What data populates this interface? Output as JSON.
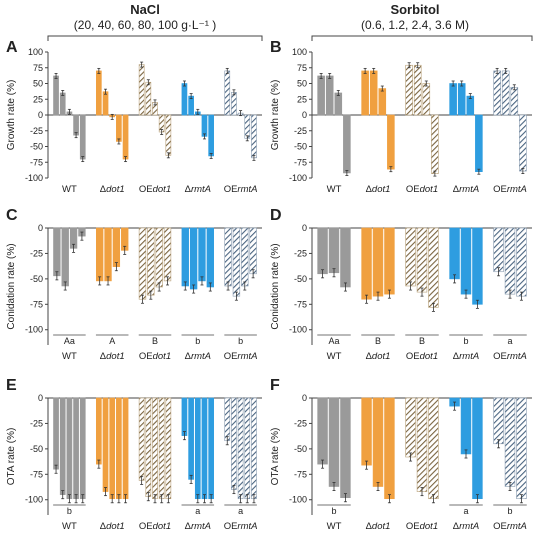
{
  "headers": [
    {
      "title": "NaCl",
      "subtitle": "(20, 40, 60, 80, 100 g·L⁻¹ )"
    },
    {
      "title": "Sorbitol",
      "subtitle": "(0.6, 1.2, 2.4, 3.6 M)"
    }
  ],
  "strains": [
    {
      "prefix": "",
      "gene": "WT",
      "italic": false
    },
    {
      "prefix": "Δ",
      "gene": "dot1",
      "italic": true
    },
    {
      "prefix": "OE",
      "gene": "dot1",
      "italic": true
    },
    {
      "prefix": "Δ",
      "gene": "rmtA",
      "italic": true
    },
    {
      "prefix": "OE",
      "gene": "rmtA",
      "italic": true
    }
  ],
  "colors": {
    "WT": "#9a9a9a",
    "dot1_del": "#f0a040",
    "dot1_oe_hatch": "#b8a078",
    "rmtA_del": "#2e9de0",
    "rmtA_oe_hatch": "#8a9cb0"
  },
  "chart_data": [
    {
      "type": "bar",
      "panel": "A",
      "ylabel": "Growth rate (%)",
      "ylim": [
        -100,
        100
      ],
      "yticks": [
        100,
        75,
        50,
        25,
        0,
        -25,
        -50,
        -75,
        -100
      ],
      "categories": [
        "WT",
        "Δdot1",
        "OEdot1",
        "ΔrmtA",
        "OErmtA"
      ],
      "values": [
        [
          62,
          35,
          5,
          -32,
          -70
        ],
        [
          70,
          37,
          -3,
          -42,
          -70
        ],
        [
          80,
          52,
          20,
          -27,
          -64
        ],
        [
          50,
          30,
          5,
          -34,
          -65
        ],
        [
          70,
          36,
          3,
          -37,
          -68
        ]
      ],
      "annotations": []
    },
    {
      "type": "bar",
      "panel": "B",
      "ylabel": "Growth rate (%)",
      "ylim": [
        -100,
        100
      ],
      "yticks": [
        100,
        75,
        50,
        25,
        0,
        -25,
        -50,
        -75,
        -100
      ],
      "categories": [
        "WT",
        "Δdot1",
        "OEdot1",
        "ΔrmtA",
        "OErmtA"
      ],
      "values": [
        [
          62,
          62,
          35,
          -92
        ],
        [
          70,
          70,
          42,
          -86
        ],
        [
          79,
          79,
          50,
          -93
        ],
        [
          50,
          50,
          30,
          -90
        ],
        [
          70,
          70,
          44,
          -89
        ]
      ],
      "annotations": []
    },
    {
      "type": "bar",
      "panel": "C",
      "ylabel": "Conidation rate (%)",
      "ylim": [
        -115,
        0
      ],
      "yticks": [
        0,
        -25,
        -50,
        -75,
        -100
      ],
      "categories": [
        "WT",
        "Δdot1",
        "OEdot1",
        "ΔrmtA",
        "OErmtA"
      ],
      "values": [
        [
          -47,
          -57,
          -20,
          -8
        ],
        [
          -52,
          -52,
          -38,
          -22
        ],
        [
          -70,
          -66,
          -58,
          -52
        ],
        [
          -57,
          -60,
          -52,
          -58
        ],
        [
          -57,
          -67,
          -57,
          -45
        ]
      ],
      "annotations": [
        "Aa",
        "A",
        "B",
        "b",
        "b"
      ]
    },
    {
      "type": "bar",
      "panel": "D",
      "ylabel": "Conidation rate (%)",
      "ylim": [
        -115,
        0
      ],
      "yticks": [
        0,
        -25,
        -50,
        -75,
        -100
      ],
      "categories": [
        "WT",
        "Δdot1",
        "OEdot1",
        "ΔrmtA",
        "OErmtA"
      ],
      "values": [
        [
          -45,
          -44,
          -58
        ],
        [
          -70,
          -67,
          -65
        ],
        [
          -57,
          -63,
          -78
        ],
        [
          -50,
          -65,
          -75
        ],
        [
          -43,
          -65,
          -67
        ]
      ],
      "annotations": [
        "Aa",
        "B",
        "B",
        "b",
        "a"
      ]
    },
    {
      "type": "bar",
      "panel": "E",
      "ylabel": "OTA rate (%)",
      "ylim": [
        -115,
        0
      ],
      "yticks": [
        0,
        -25,
        -50,
        -75,
        -100
      ],
      "categories": [
        "WT",
        "Δdot1",
        "OEdot1",
        "ΔrmtA",
        "OErmtA"
      ],
      "values": [
        [
          -70,
          -95,
          -99,
          -99,
          -99
        ],
        [
          -65,
          -92,
          -99,
          -99,
          -99
        ],
        [
          -81,
          -97,
          -99,
          -99,
          -99
        ],
        [
          -37,
          -80,
          -99,
          -99,
          -99
        ],
        [
          -42,
          -90,
          -99,
          -99,
          -99
        ]
      ],
      "annotations": [
        "b",
        "",
        "",
        "a",
        "a"
      ]
    },
    {
      "type": "bar",
      "panel": "F",
      "ylabel": "OTA rate (%)",
      "ylim": [
        -115,
        0
      ],
      "yticks": [
        0,
        -25,
        -50,
        -75,
        -100
      ],
      "categories": [
        "WT",
        "Δdot1",
        "OEdot1",
        "ΔrmtA",
        "OErmtA"
      ],
      "values": [
        [
          -65,
          -87,
          -98
        ],
        [
          -66,
          -87,
          -99
        ],
        [
          -58,
          -92,
          -99
        ],
        [
          -8,
          -55,
          -99
        ],
        [
          -45,
          -87,
          -99
        ]
      ],
      "annotations": [
        "b",
        "",
        "",
        "a",
        "b"
      ]
    }
  ]
}
